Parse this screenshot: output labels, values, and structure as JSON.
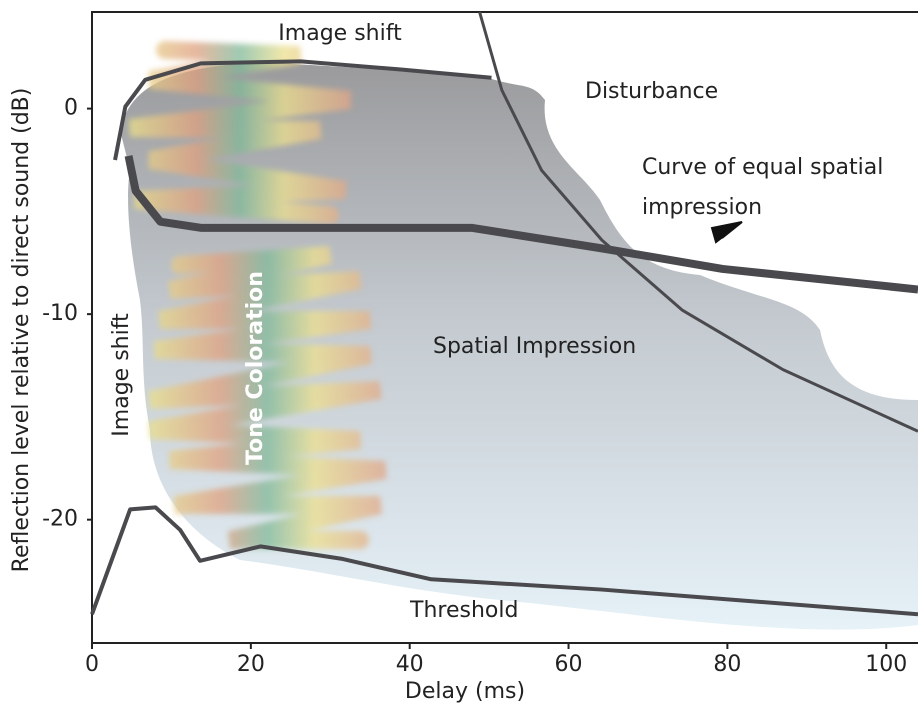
{
  "chart_data": {
    "type": "line",
    "x_label": "Delay (ms)",
    "y_label": "Reflection level relative to direct sound (dB)",
    "xlim": [
      0,
      104
    ],
    "ylim": [
      -26,
      4.7
    ],
    "xticks": [
      0,
      20,
      40,
      60,
      80,
      100
    ],
    "yticks": [
      0,
      -10,
      -20
    ],
    "series": [
      {
        "color": "#4a4a4e",
        "line_width": 4,
        "x": [
          0,
          4.8,
          8,
          11.1,
          13.6,
          21.2,
          31.4,
          42.7,
          64.2,
          104
        ],
        "y": [
          -24.6,
          -19.5,
          -19.4,
          -20.5,
          -22.0,
          -21.3,
          -21.9,
          -22.9,
          -23.4,
          -24.6
        ]
      },
      {
        "color": "#4a4a4e",
        "line_width": 4,
        "x": [
          2.9,
          4.2,
          6.7,
          13.7,
          26.3,
          38.9,
          50.3
        ],
        "y": [
          -2.5,
          0.1,
          1.4,
          2.2,
          2.3,
          1.9,
          1.5
        ]
      },
      {
        "color": "#4a4a4e",
        "line_width": 8,
        "x": [
          4.6,
          5.5,
          8.6,
          13.7,
          47.8,
          64.2,
          79.4,
          104
        ],
        "y": [
          -2.3,
          -4.0,
          -5.5,
          -5.8,
          -5.8,
          -6.8,
          -7.8,
          -8.8
        ]
      },
      {
        "color": "#4a4a4e",
        "line_width": 3,
        "x": [
          48.8,
          51.6,
          56.6,
          64.2,
          74.3,
          87,
          104
        ],
        "y": [
          4.7,
          0.9,
          -3.0,
          -6.4,
          -9.8,
          -12.7,
          -15.7
        ]
      }
    ],
    "annotations": [
      {
        "text": "Image shift"
      },
      {
        "text": "Disturbance"
      },
      {
        "text": [
          "Curve of equal spatial",
          "impression"
        ]
      },
      {
        "text": "Spatial Impression"
      },
      {
        "text": "Image shift"
      },
      {
        "text": "Tone Coloration"
      },
      {
        "text": "Threshold"
      }
    ]
  }
}
